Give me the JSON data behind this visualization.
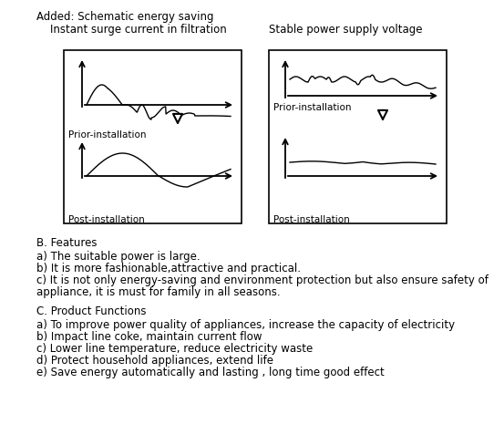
{
  "title_line1": "Added: Schematic energy saving",
  "subtitle_left": "    Instant surge current in filtration",
  "subtitle_right": "Stable power supply voltage",
  "label_prior": "Prior-installation",
  "label_post": "Post-installation",
  "features_header": "B. Features",
  "features": [
    "a) The suitable power is large.",
    "b) It is more fashionable,attractive and practical.",
    "c) It is not only energy-saving and environment protection but also ensure safety of",
    "appliance, it is must for family in all seasons."
  ],
  "functions_header": "C. Product Functions",
  "functions": [
    "a) To improve power quality of appliances, increase the capacity of electricity",
    "b) Impact line coke, maintain current flow",
    "c) Lower line temperature, reduce electricity waste",
    "d) Protect household appliances, extend life",
    "e) Save energy automatically and lasting , long time good effect"
  ],
  "bg_color": "#ffffff",
  "text_color": "#000000",
  "fontsize_main": 8.5,
  "fontsize_small": 7.5
}
